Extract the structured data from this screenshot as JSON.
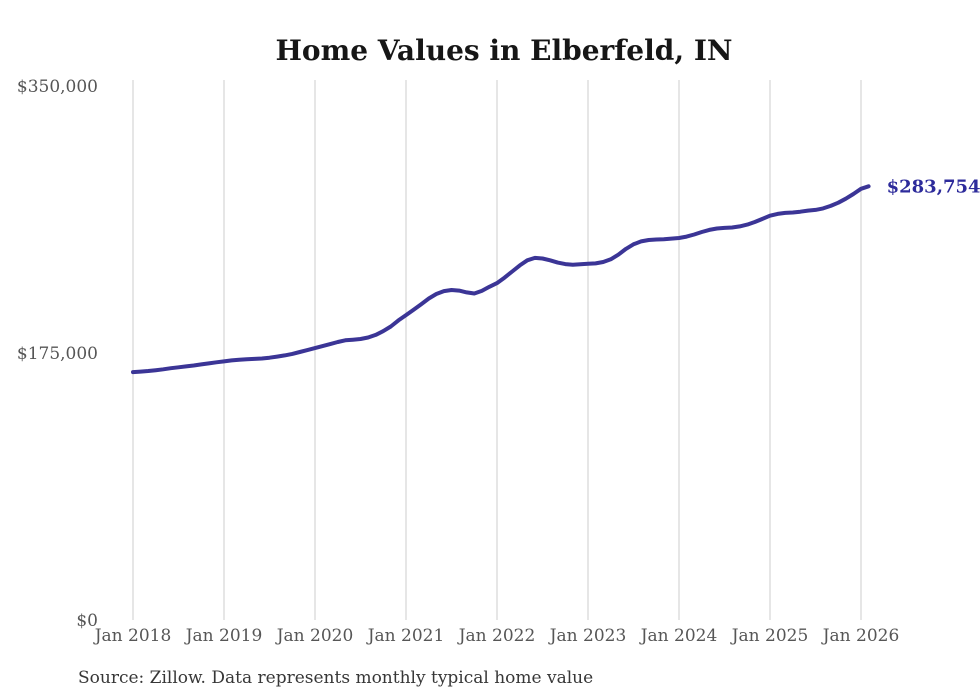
{
  "title": "Home Values in Elberfeld, IN",
  "source_note": "Source: Zillow. Data represents monthly typical home value",
  "end_label": "$283,754",
  "colors": {
    "line": "#3b3596",
    "end_label_text": "#2d2b9b",
    "gridline": "#cccccc",
    "axis_text": "#565656",
    "title_text": "#161616",
    "source_text": "#373737",
    "background": "#ffffff"
  },
  "chart_data": {
    "type": "line",
    "title": "Home Values in Elberfeld, IN",
    "xlabel": "",
    "ylabel": "",
    "legend": "none",
    "grid": "vertical-only",
    "ylim": [
      0,
      350000
    ],
    "y_tick_labels": [
      "$0",
      "$175,000",
      "$350,000"
    ],
    "y_tick_values": [
      0,
      175000,
      350000
    ],
    "x_tick_labels": [
      "Jan 2018",
      "Jan 2019",
      "Jan 2020",
      "Jan 2021",
      "Jan 2022",
      "Jan 2023",
      "Jan 2024",
      "Jan 2025",
      "Jan 2026"
    ],
    "series": [
      {
        "name": "Monthly typical home value (USD)",
        "start_month": "2018-01",
        "frequency": "monthly",
        "values": [
          162200,
          162500,
          162900,
          163400,
          164000,
          164700,
          165300,
          165900,
          166500,
          167200,
          167900,
          168600,
          169200,
          169800,
          170300,
          170600,
          170800,
          171100,
          171600,
          172300,
          173100,
          174100,
          175300,
          176600,
          177900,
          179200,
          180500,
          181900,
          183000,
          183400,
          183800,
          184800,
          186500,
          189000,
          192000,
          196000,
          199500,
          203000,
          206600,
          210300,
          213300,
          215200,
          215900,
          215500,
          214300,
          213600,
          215300,
          218000,
          220400,
          224000,
          228000,
          232000,
          235300,
          236900,
          236500,
          235300,
          233800,
          232800,
          232400,
          232700,
          233000,
          233300,
          234200,
          236000,
          239000,
          242800,
          245800,
          247700,
          248600,
          248900,
          249100,
          249500,
          249900,
          250800,
          252200,
          253800,
          255200,
          256100,
          256500,
          256800,
          257500,
          258700,
          260400,
          262400,
          264500,
          265700,
          266300,
          266600,
          267100,
          267800,
          268300,
          269300,
          270900,
          273000,
          275600,
          278700,
          282100,
          283754
        ]
      }
    ],
    "end_value": 283754,
    "end_value_label": "$283,754"
  }
}
